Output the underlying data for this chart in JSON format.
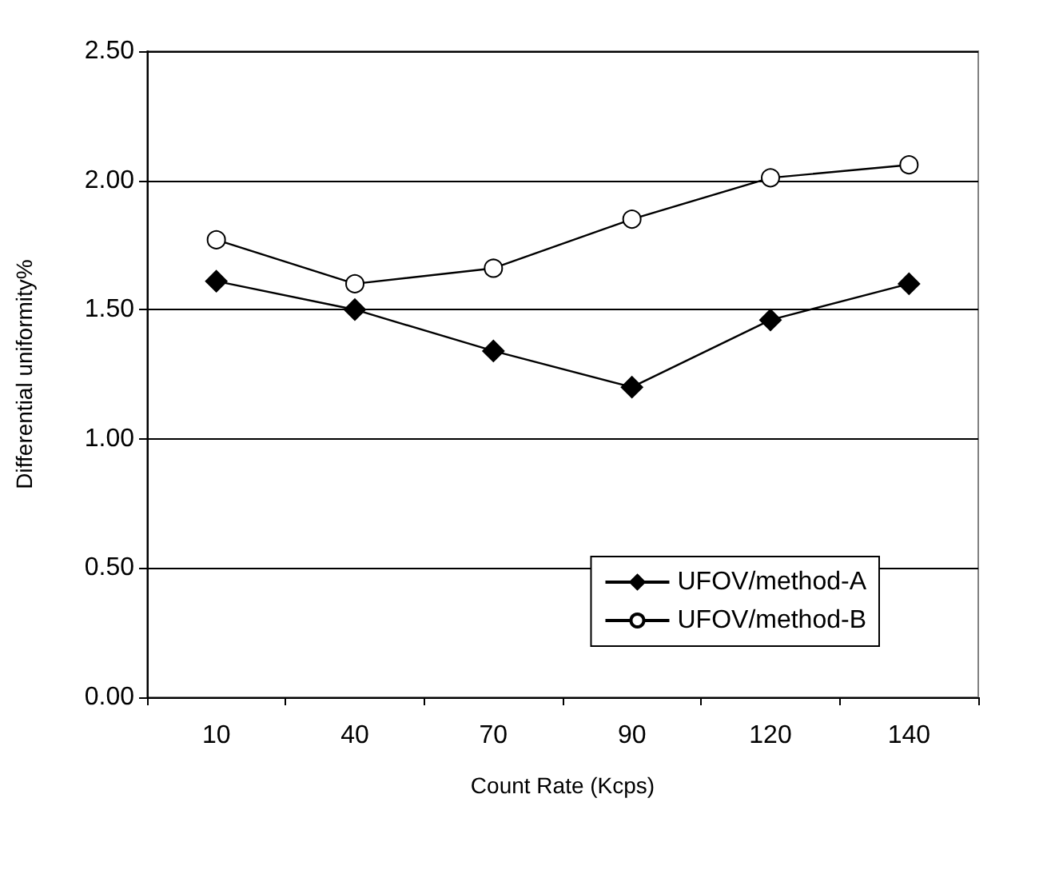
{
  "chart_data": {
    "type": "line",
    "xlabel": "Count Rate (Kcps)",
    "ylabel": "Differential uniformity%",
    "categories": [
      "10",
      "40",
      "70",
      "90",
      "120",
      "140"
    ],
    "series": [
      {
        "name": "UFOV/method-A",
        "color": "#000000",
        "marker": "diamond",
        "values": [
          1.61,
          1.5,
          1.34,
          1.2,
          1.46,
          1.6
        ]
      },
      {
        "name": "UFOV/method-B",
        "color": "#000000",
        "marker": "circle",
        "values": [
          1.77,
          1.6,
          1.66,
          1.85,
          2.01,
          2.06
        ]
      }
    ],
    "ylim": [
      0,
      2.5
    ],
    "yticks": [
      {
        "value": 0,
        "label": "0.00"
      },
      {
        "value": 0.5,
        "label": "0.50"
      },
      {
        "value": 1,
        "label": "1.00"
      },
      {
        "value": 1.5,
        "label": "1.50"
      },
      {
        "value": 2,
        "label": "2.00"
      },
      {
        "value": 2.5,
        "label": "2.50"
      }
    ],
    "grid": "y",
    "legend": "bottom right",
    "line_style": "solid"
  }
}
